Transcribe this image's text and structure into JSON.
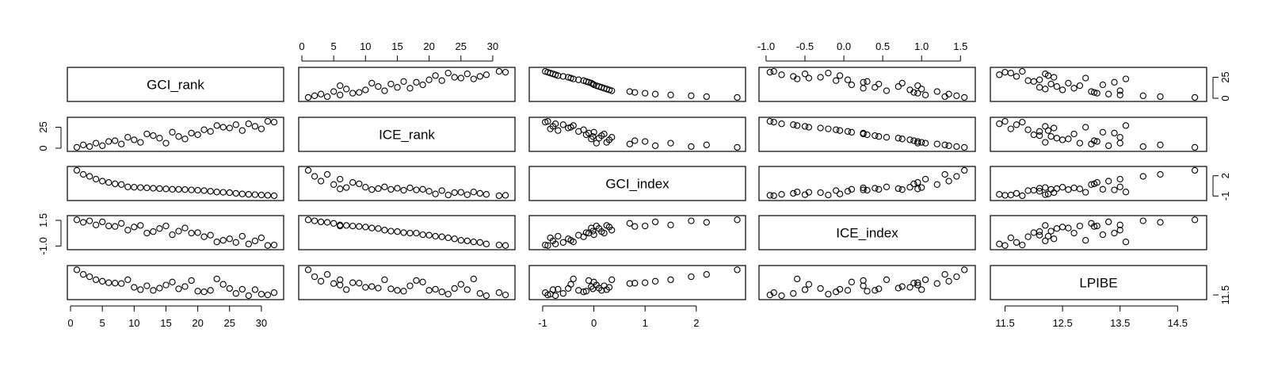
{
  "chart_data": {
    "type": "scatter",
    "title": "",
    "variables": [
      "GCI_rank",
      "ICE_rank",
      "GCI_index",
      "ICE_index",
      "LPIBE"
    ],
    "ranges": [
      [
        0,
        33
      ],
      [
        0,
        33
      ],
      [
        -1.2,
        2.9
      ],
      [
        -1.05,
        1.65
      ],
      [
        11.3,
        14.95
      ]
    ],
    "axes": [
      {
        "side": "bottom",
        "variable": "GCI_rank",
        "ticks": [
          0,
          5,
          10,
          15,
          20,
          25,
          30
        ],
        "labels": [
          "0",
          "5",
          "10",
          "15",
          "20",
          "25",
          "30"
        ]
      },
      {
        "side": "top",
        "variable": "ICE_rank",
        "ticks": [
          0,
          5,
          10,
          15,
          20,
          25,
          30
        ],
        "labels": [
          "0",
          "5",
          "10",
          "15",
          "20",
          "25",
          "30"
        ]
      },
      {
        "side": "bottom",
        "variable": "GCI_index",
        "ticks": [
          -1,
          0,
          1,
          2
        ],
        "labels": [
          "-1",
          "0",
          "1",
          "2"
        ]
      },
      {
        "side": "top",
        "variable": "ICE_index",
        "ticks": [
          -1.0,
          -0.5,
          0.0,
          0.5,
          1.0,
          1.5
        ],
        "labels": [
          "-1.0",
          "-0.5",
          "0.0",
          "0.5",
          "1.0",
          "1.5"
        ]
      },
      {
        "side": "bottom",
        "variable": "LPIBE",
        "ticks": [
          11.5,
          12.5,
          13.5,
          14.5
        ],
        "labels": [
          "11.5",
          "12.5",
          "13.5",
          "14.5"
        ]
      },
      {
        "side": "right",
        "variable": "GCI_rank",
        "ticks": [
          0,
          25
        ],
        "labels": [
          "0",
          "25"
        ]
      },
      {
        "side": "left",
        "variable": "ICE_rank",
        "ticks": [
          0,
          25
        ],
        "labels": [
          "0",
          "25"
        ]
      },
      {
        "side": "right",
        "variable": "GCI_index",
        "ticks": [
          -1,
          2
        ],
        "labels": [
          "-1",
          "2"
        ]
      },
      {
        "side": "left",
        "variable": "ICE_index",
        "ticks": [
          -1.0,
          1.5
        ],
        "labels": [
          "-1.0",
          "1.5"
        ]
      },
      {
        "side": "right",
        "variable": "LPIBE",
        "ticks": [
          11.5
        ],
        "labels": [
          "11.5"
        ]
      }
    ],
    "points": {
      "GCI_rank": [
        1,
        2,
        3,
        4,
        5,
        6,
        7,
        8,
        9,
        10,
        11,
        12,
        13,
        14,
        15,
        16,
        17,
        18,
        19,
        20,
        21,
        22,
        23,
        24,
        25,
        26,
        27,
        28,
        29,
        30,
        31,
        32
      ],
      "ICE_rank": [
        1,
        4,
        2,
        6,
        3,
        8,
        9,
        5,
        13,
        10,
        7,
        17,
        15,
        12,
        6,
        19,
        14,
        11,
        18,
        16,
        22,
        20,
        27,
        25,
        24,
        28,
        21,
        29,
        26,
        23,
        32,
        31
      ],
      "GCI_index": [
        2.8,
        2.2,
        1.9,
        1.5,
        1.2,
        1.0,
        0.8,
        0.7,
        0.35,
        0.3,
        0.25,
        0.2,
        0.15,
        0.1,
        0.05,
        0.0,
        -0.02,
        -0.05,
        -0.1,
        -0.15,
        -0.2,
        -0.3,
        -0.4,
        -0.45,
        -0.5,
        -0.6,
        -0.7,
        -0.75,
        -0.8,
        -0.85,
        -0.9,
        -0.95
      ],
      "ICE_index": [
        1.55,
        1.3,
        1.45,
        1.05,
        1.35,
        0.95,
        0.9,
        1.2,
        0.55,
        0.85,
        1.0,
        0.25,
        0.4,
        0.7,
        0.95,
        0.1,
        0.45,
        0.75,
        0.25,
        0.3,
        -0.1,
        0.05,
        -0.6,
        -0.45,
        -0.3,
        -0.65,
        -0.05,
        -0.8,
        -0.5,
        -0.2,
        -0.95,
        -0.9
      ],
      "LPIBE": [
        14.8,
        14.2,
        13.9,
        13.5,
        13.3,
        13.1,
        13.05,
        13.0,
        13.5,
        12.5,
        12.2,
        12.7,
        12.1,
        12.4,
        12.8,
        13.2,
        12.3,
        12.6,
        13.4,
        12.0,
        11.9,
        12.1,
        13.6,
        12.9,
        12.35,
        11.7,
        12.25,
        11.4,
        12.2,
        11.6,
        11.5,
        11.8
      ]
    }
  }
}
